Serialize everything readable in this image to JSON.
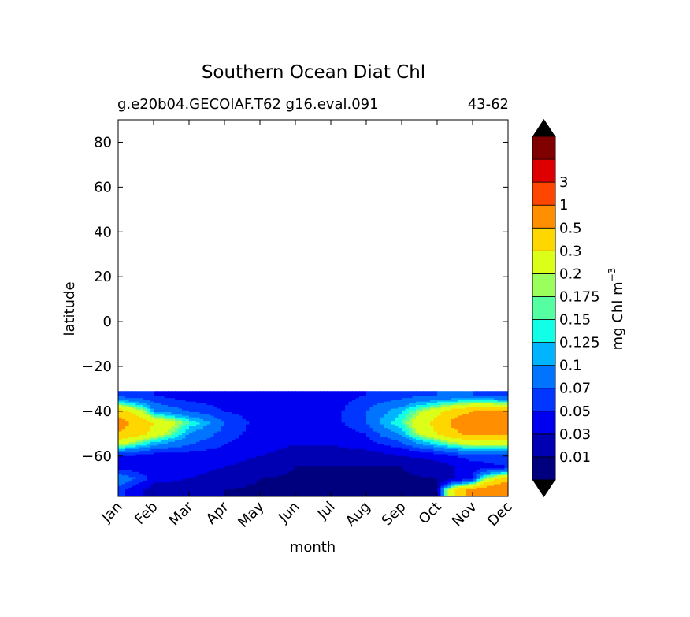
{
  "chart_data": {
    "type": "contour",
    "title": "Southern Ocean Diat Chl",
    "subtitle_left": "g.e20b04.GECOIAF.T62 g16.eval.091",
    "subtitle_right": "43-62",
    "xlabel": "month",
    "ylabel": "latitude",
    "x_categories": [
      "Jan",
      "Feb",
      "Mar",
      "Apr",
      "May",
      "Jun",
      "Jul",
      "Aug",
      "Sep",
      "Oct",
      "Nov",
      "Dec"
    ],
    "y_ticks": [
      80,
      60,
      40,
      20,
      0,
      -20,
      -40,
      -60
    ],
    "y_tick_labels": [
      "80",
      "60",
      "40",
      "20",
      "0",
      "−20",
      "−40",
      "−60"
    ],
    "ylim": [
      -78,
      90
    ],
    "data_extent_lat": [
      -78,
      -31
    ],
    "colorbar": {
      "label_main": "mg Chl m",
      "label_exp": "−3",
      "levels": [
        "0.01",
        "0.03",
        "0.05",
        "0.07",
        "0.1",
        "0.125",
        "0.15",
        "0.175",
        "0.2",
        "0.3",
        "0.5",
        "1",
        "3"
      ],
      "colors": [
        "#00007f",
        "#0000b2",
        "#0000f1",
        "#0036ff",
        "#0074ff",
        "#00b4ff",
        "#10ffe6",
        "#55ffa1",
        "#9aff5c",
        "#dcff19",
        "#ffd700",
        "#ff8e00",
        "#ff4600",
        "#de0000",
        "#800000"
      ],
      "extend_min": "#000000",
      "extend_max": "#000000"
    },
    "bands_note": "Contoured seasonal cycle of diatom chlorophyll concentration: high values (0.3-1) near 45S in Jan and Oct-Dec, lowest values (<0.01) south of 60S in winter months.",
    "field_samples_lat": [
      -33,
      -40,
      -45,
      -50,
      -55,
      -60,
      -65,
      -70,
      -75
    ],
    "field_samples": [
      [
        0.06,
        0.05,
        0.04,
        0.04,
        0.04,
        0.04,
        0.04,
        0.05,
        0.06,
        0.07,
        0.07,
        0.06
      ],
      [
        0.4,
        0.1,
        0.07,
        0.05,
        0.04,
        0.04,
        0.04,
        0.07,
        0.12,
        0.25,
        0.5,
        0.5
      ],
      [
        0.6,
        0.3,
        0.15,
        0.07,
        0.04,
        0.04,
        0.04,
        0.07,
        0.15,
        0.35,
        0.8,
        0.7
      ],
      [
        0.5,
        0.25,
        0.1,
        0.06,
        0.04,
        0.03,
        0.04,
        0.05,
        0.11,
        0.3,
        0.6,
        0.6
      ],
      [
        0.2,
        0.1,
        0.07,
        0.05,
        0.04,
        0.03,
        0.03,
        0.04,
        0.06,
        0.12,
        0.2,
        0.2
      ],
      [
        0.05,
        0.04,
        0.04,
        0.04,
        0.03,
        0.02,
        0.02,
        0.02,
        0.03,
        0.04,
        0.06,
        0.06
      ],
      [
        0.04,
        0.04,
        0.04,
        0.03,
        0.02,
        0.01,
        0.009,
        0.009,
        0.01,
        0.02,
        0.04,
        0.05
      ],
      [
        0.1,
        0.04,
        0.03,
        0.02,
        0.01,
        0.008,
        0.008,
        0.008,
        0.008,
        0.01,
        0.05,
        0.4
      ],
      [
        0.06,
        0.02,
        0.02,
        0.01,
        0.008,
        0.008,
        0.008,
        0.008,
        0.008,
        0.01,
        0.6,
        0.9
      ]
    ]
  }
}
